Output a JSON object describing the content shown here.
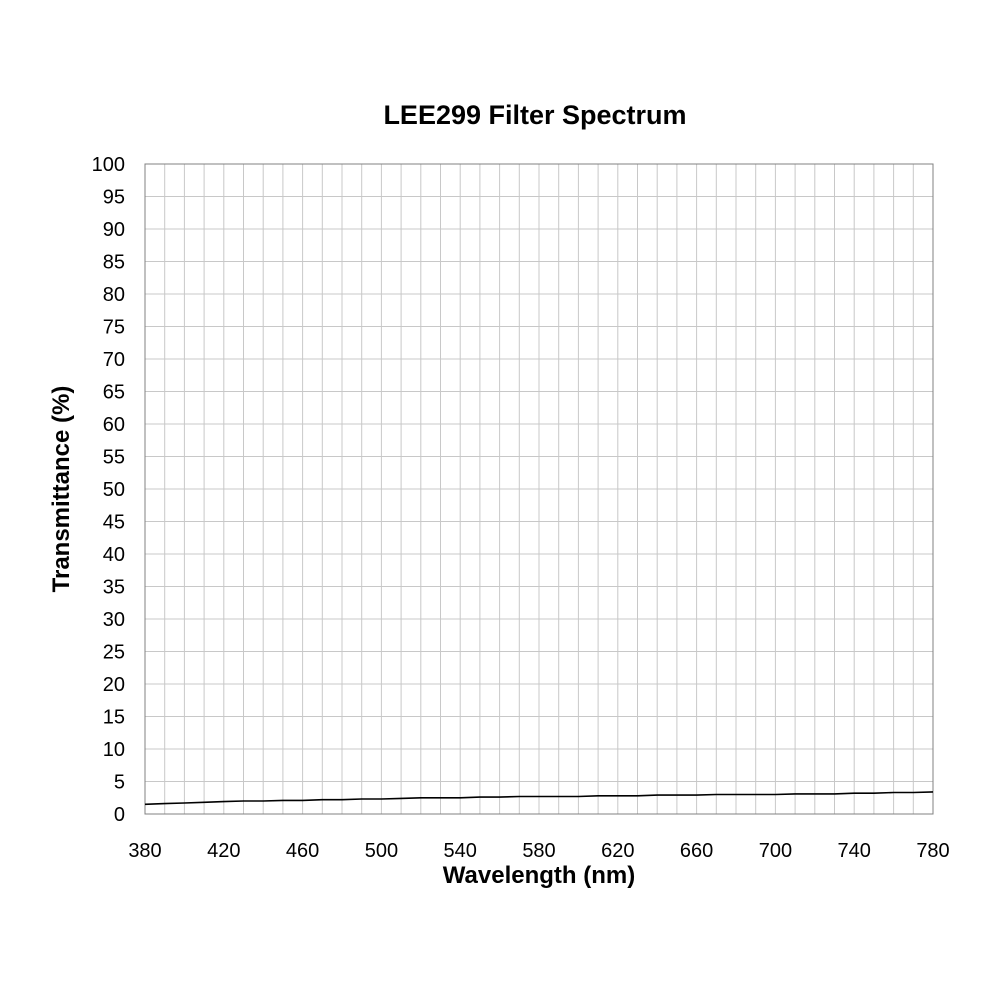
{
  "chart_data": {
    "type": "line",
    "title": "LEE299 Filter Spectrum",
    "xlabel": "Wavelength (nm)",
    "ylabel": "Transmittance (%)",
    "xlim": [
      380,
      780
    ],
    "ylim": [
      0,
      100
    ],
    "x_ticks": [
      380,
      420,
      460,
      500,
      540,
      580,
      620,
      660,
      700,
      740,
      780
    ],
    "y_ticks": [
      0,
      5,
      10,
      15,
      20,
      25,
      30,
      35,
      40,
      45,
      50,
      55,
      60,
      65,
      70,
      75,
      80,
      85,
      90,
      95,
      100
    ],
    "grid": true,
    "legend": "none",
    "line_color": "#000000",
    "grid_color": "#c8c8c8",
    "series": [
      {
        "x": [
          380,
          390,
          400,
          410,
          420,
          430,
          440,
          450,
          460,
          470,
          480,
          490,
          500,
          510,
          520,
          530,
          540,
          550,
          560,
          570,
          580,
          590,
          600,
          610,
          620,
          630,
          640,
          650,
          660,
          670,
          680,
          690,
          700,
          710,
          720,
          730,
          740,
          750,
          760,
          770,
          780
        ],
        "y": [
          1.5,
          1.6,
          1.7,
          1.8,
          1.9,
          2.0,
          2.0,
          2.1,
          2.1,
          2.2,
          2.2,
          2.3,
          2.3,
          2.4,
          2.5,
          2.5,
          2.5,
          2.6,
          2.6,
          2.7,
          2.7,
          2.7,
          2.7,
          2.8,
          2.8,
          2.8,
          2.9,
          2.9,
          2.9,
          3.0,
          3.0,
          3.0,
          3.0,
          3.1,
          3.1,
          3.1,
          3.2,
          3.2,
          3.3,
          3.3,
          3.4
        ]
      }
    ]
  }
}
